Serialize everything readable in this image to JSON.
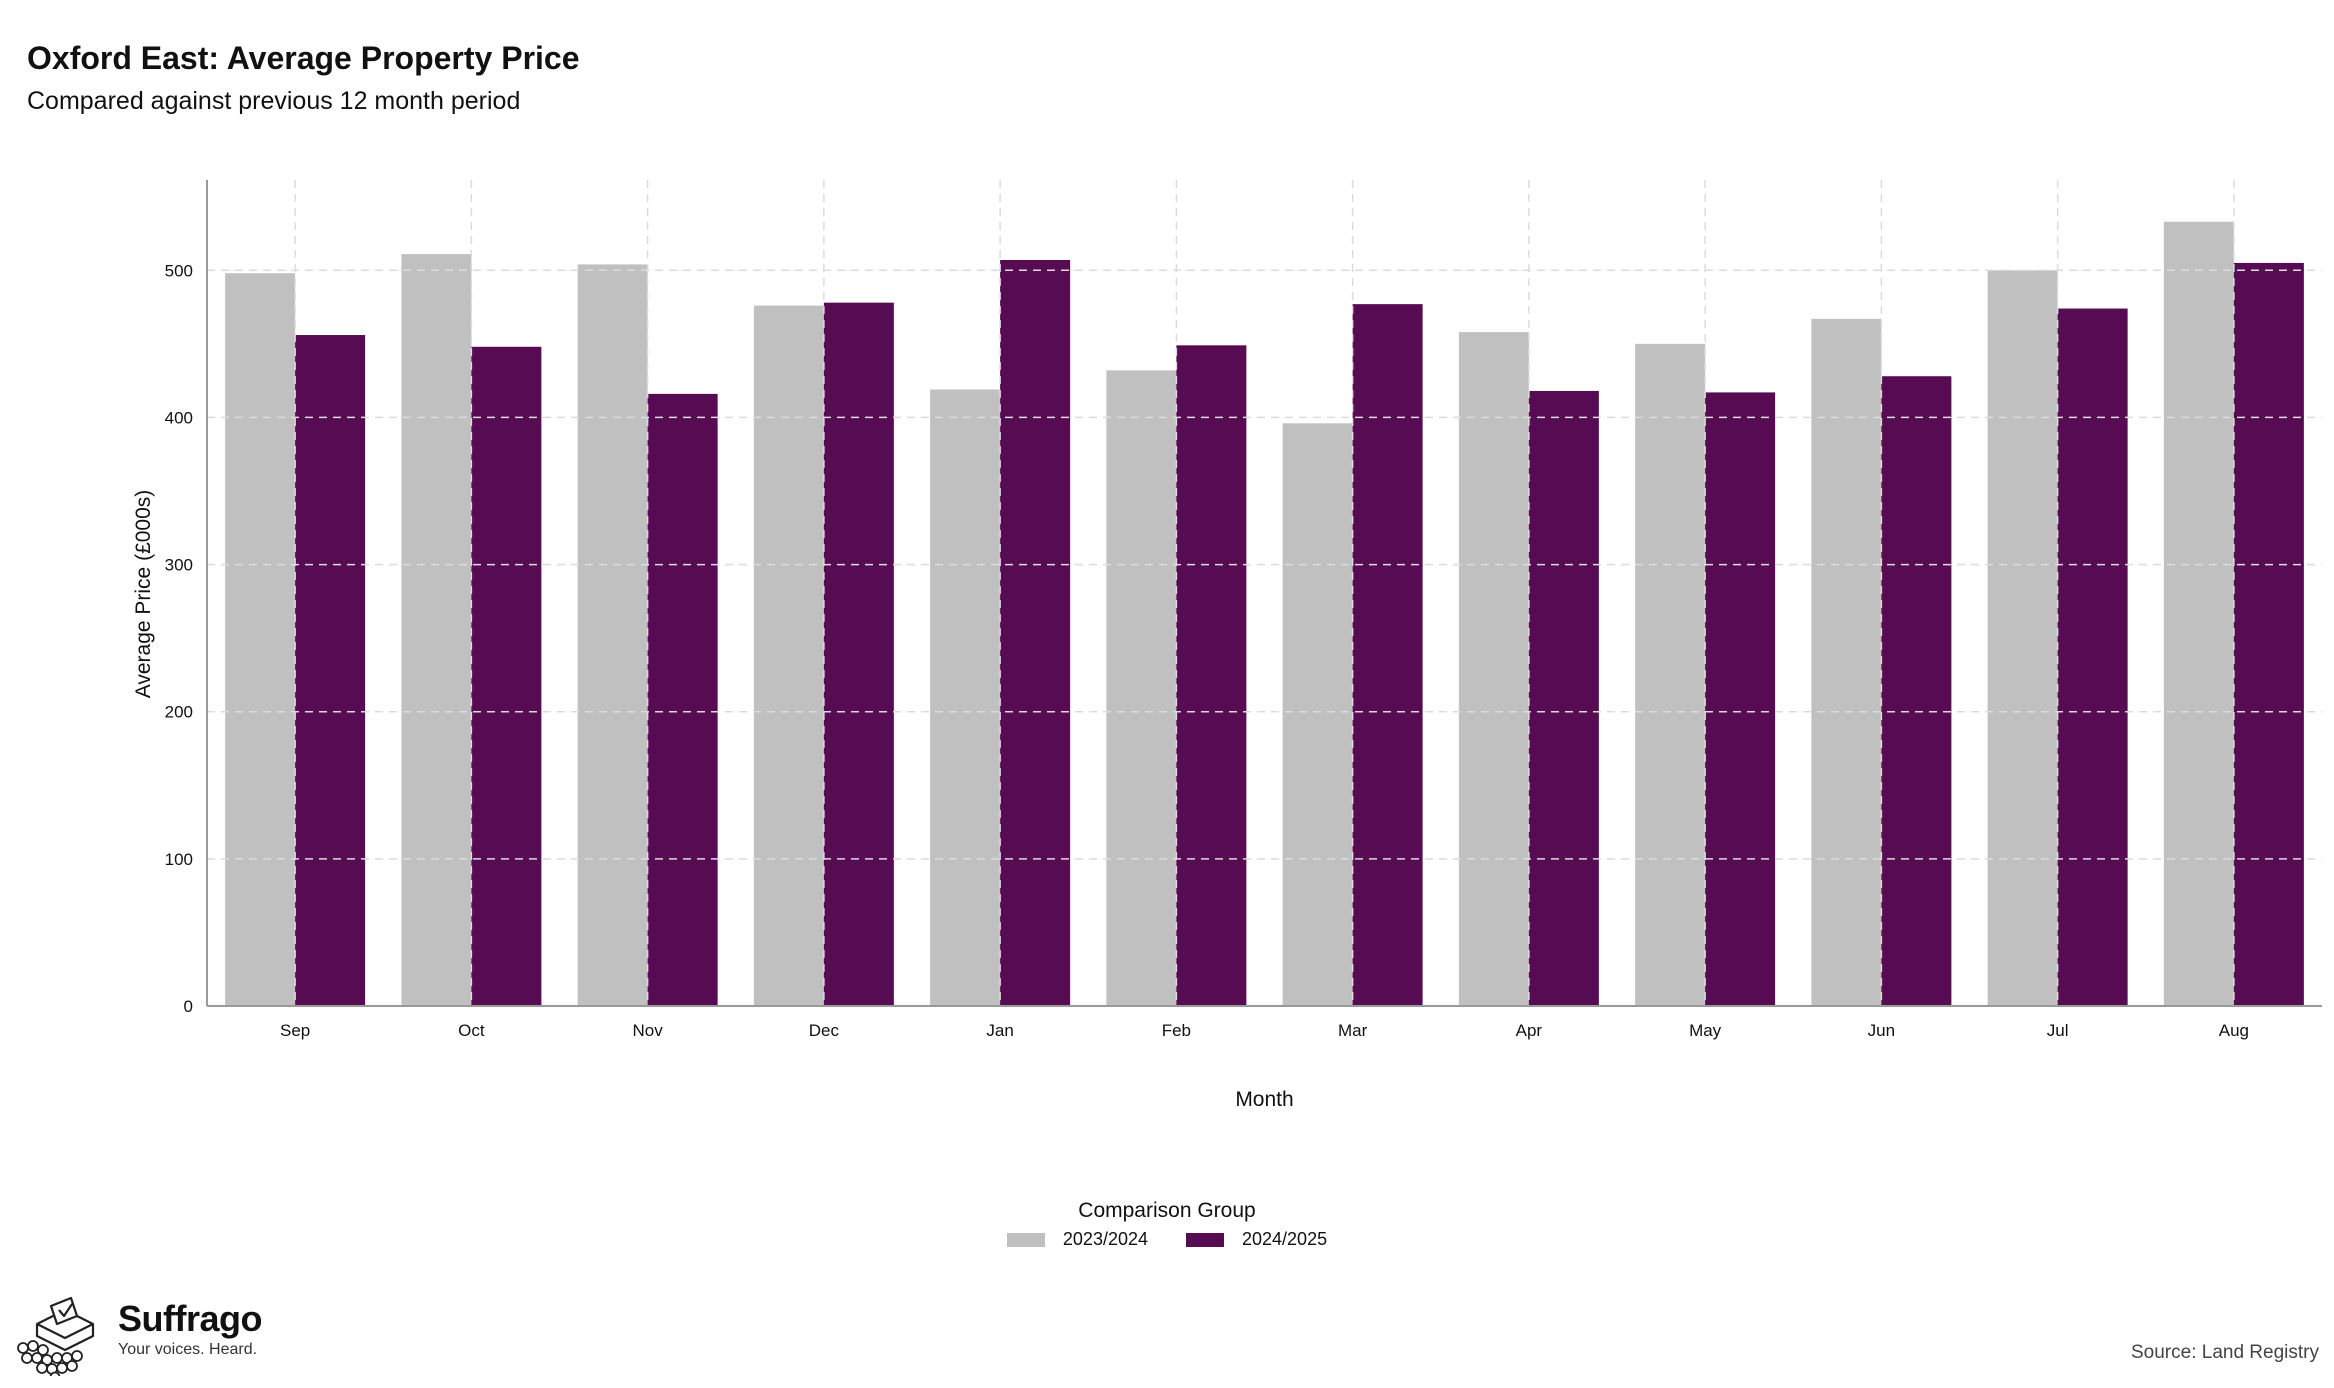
{
  "header": {
    "title": "Oxford East: Average Property Price",
    "subtitle": "Compared against previous 12 month period"
  },
  "chart_data": {
    "type": "bar",
    "title": "Oxford East: Average Property Price",
    "subtitle": "Compared against previous 12 month period",
    "xlabel": "Month",
    "ylabel": "Average Price (£000s)",
    "ylim": [
      0,
      560
    ],
    "yticks": [
      0,
      100,
      200,
      300,
      400,
      500
    ],
    "grid": true,
    "legend_position": "bottom",
    "legend_title": "Comparison Group",
    "categories": [
      "Sep",
      "Oct",
      "Nov",
      "Dec",
      "Jan",
      "Feb",
      "Mar",
      "Apr",
      "May",
      "Jun",
      "Jul",
      "Aug"
    ],
    "series": [
      {
        "name": "2023/2024",
        "color": "#c0c0c0",
        "values": [
          498,
          511,
          504,
          476,
          419,
          432,
          396,
          458,
          450,
          467,
          500,
          533
        ]
      },
      {
        "name": "2024/2025",
        "color": "#560b52",
        "values": [
          456,
          448,
          416,
          478,
          507,
          449,
          477,
          418,
          417,
          428,
          474,
          505
        ]
      }
    ]
  },
  "footer": {
    "brand_name": "Suffrago",
    "brand_tagline": "Your voices. Heard.",
    "brand_icon": "ballot-box-icon",
    "source": "Source: Land Registry"
  }
}
